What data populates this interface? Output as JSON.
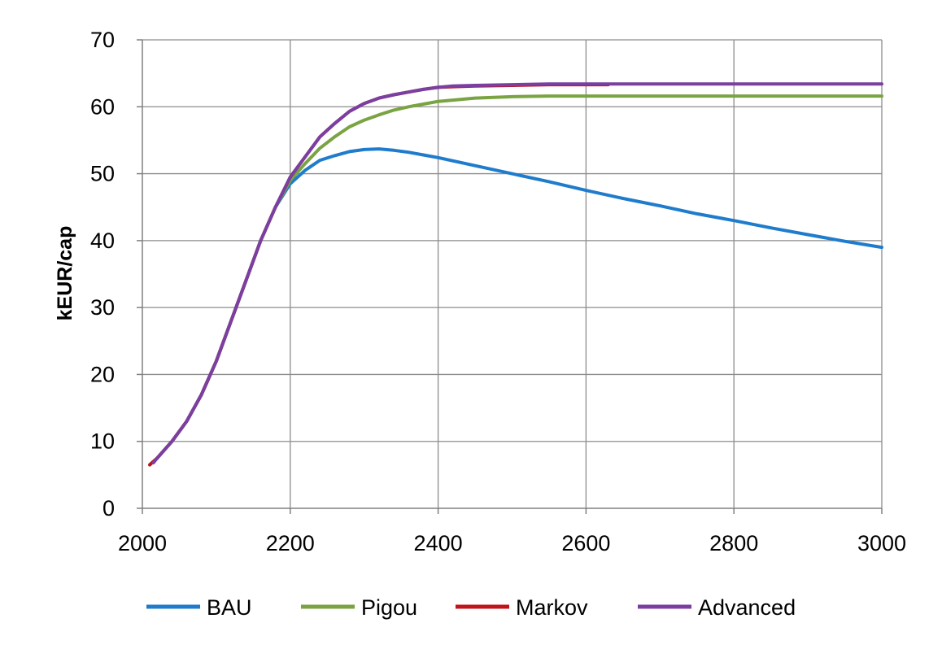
{
  "chart_data": {
    "type": "line",
    "title": "",
    "xlabel": "",
    "ylabel": "kEUR/cap",
    "xlim": [
      2000,
      3000
    ],
    "ylim": [
      0,
      70
    ],
    "xticks": [
      2000,
      2200,
      2400,
      2600,
      2800,
      3000
    ],
    "yticks": [
      0,
      10,
      20,
      30,
      40,
      50,
      60,
      70
    ],
    "grid": true,
    "legend_position": "bottom",
    "series": [
      {
        "name": "BAU",
        "color": "#1f7ccc",
        "x": [
          2010,
          2020,
          2040,
          2060,
          2080,
          2100,
          2120,
          2140,
          2160,
          2180,
          2200,
          2220,
          2240,
          2260,
          2280,
          2300,
          2320,
          2340,
          2360,
          2380,
          2400,
          2450,
          2500,
          2550,
          2600,
          2650,
          2700,
          2750,
          2800,
          2850,
          2900,
          2950,
          3000
        ],
        "y": [
          6.5,
          7.5,
          10,
          13,
          17,
          22,
          28,
          34,
          40,
          45,
          48.5,
          50.5,
          52,
          52.7,
          53.3,
          53.6,
          53.7,
          53.5,
          53.2,
          52.8,
          52.4,
          51.2,
          50,
          48.8,
          47.5,
          46.3,
          45.2,
          44,
          43,
          41.9,
          40.9,
          39.9,
          39
        ]
      },
      {
        "name": "Pigou",
        "color": "#7aa342",
        "x": [
          2010,
          2020,
          2040,
          2060,
          2080,
          2100,
          2120,
          2140,
          2160,
          2180,
          2200,
          2220,
          2240,
          2260,
          2280,
          2300,
          2320,
          2340,
          2360,
          2380,
          2400,
          2450,
          2500,
          2550,
          2600,
          2700,
          2800,
          2900,
          3000
        ],
        "y": [
          6.5,
          7.5,
          10,
          13,
          17,
          22,
          28,
          34,
          40,
          45,
          49,
          51.5,
          53.8,
          55.5,
          57,
          58,
          58.8,
          59.5,
          60,
          60.4,
          60.8,
          61.3,
          61.5,
          61.6,
          61.6,
          61.6,
          61.6,
          61.6,
          61.6
        ]
      },
      {
        "name": "Markov",
        "color": "#c0141c",
        "x": [
          2010,
          2020,
          2040,
          2060,
          2080,
          2100,
          2120,
          2140,
          2160,
          2180,
          2200,
          2220,
          2240,
          2260,
          2280,
          2300,
          2320,
          2340,
          2360,
          2380,
          2400,
          2420,
          2450,
          2500,
          2550,
          2600,
          2630
        ],
        "y": [
          6.5,
          7.5,
          10,
          13,
          17,
          22,
          28,
          34,
          40,
          45,
          49.5,
          52.5,
          55.5,
          57.5,
          59.3,
          60.5,
          61.3,
          61.8,
          62.2,
          62.6,
          62.9,
          63,
          63.1,
          63.2,
          63.3,
          63.3,
          63.3
        ]
      },
      {
        "name": "Advanced",
        "color": "#7a3fa0",
        "x": [
          2015,
          2020,
          2040,
          2060,
          2080,
          2100,
          2120,
          2140,
          2160,
          2180,
          2200,
          2220,
          2240,
          2260,
          2280,
          2300,
          2320,
          2340,
          2360,
          2380,
          2400,
          2420,
          2450,
          2500,
          2550,
          2600,
          2700,
          2800,
          2900,
          3000
        ],
        "y": [
          6.8,
          7.5,
          10,
          13,
          17,
          22,
          28,
          34,
          40,
          45,
          49.5,
          52.5,
          55.5,
          57.5,
          59.3,
          60.5,
          61.3,
          61.8,
          62.2,
          62.6,
          62.9,
          63.1,
          63.2,
          63.3,
          63.4,
          63.4,
          63.4,
          63.4,
          63.4,
          63.4
        ]
      }
    ]
  }
}
